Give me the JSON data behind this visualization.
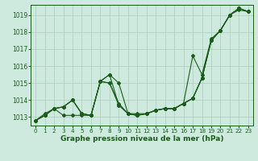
{
  "xlabel": "Graphe pression niveau de la mer (hPa)",
  "bg_color": "#ceeade",
  "grid_color": "#aacbbb",
  "line_color": "#1a5c1a",
  "hours": [
    0,
    1,
    2,
    3,
    4,
    5,
    6,
    7,
    8,
    9,
    10,
    11,
    12,
    13,
    14,
    15,
    16,
    17,
    18,
    19,
    20,
    21,
    22,
    23
  ],
  "series1": [
    1012.8,
    1013.1,
    1013.5,
    1013.1,
    1013.1,
    1013.1,
    1013.1,
    1015.1,
    1015.5,
    1015.0,
    1013.2,
    1013.1,
    1013.2,
    1013.4,
    1013.5,
    1013.5,
    1013.8,
    1014.1,
    1015.3,
    1017.5,
    1018.1,
    1019.0,
    1019.4,
    1019.2
  ],
  "series2": [
    1012.8,
    1013.1,
    1013.5,
    1013.6,
    1014.0,
    1013.2,
    1013.1,
    1015.1,
    1015.0,
    1013.7,
    1013.2,
    1013.1,
    1013.2,
    1013.4,
    1013.5,
    1013.5,
    1013.8,
    1014.1,
    1015.3,
    1017.5,
    1018.1,
    1019.0,
    1019.4,
    1019.2
  ],
  "series3": [
    1012.8,
    1013.1,
    1013.5,
    1013.6,
    1014.0,
    1013.2,
    1013.1,
    1015.1,
    1015.5,
    1013.7,
    1013.2,
    1013.1,
    1013.2,
    1013.4,
    1013.5,
    1013.5,
    1013.8,
    1014.1,
    1015.3,
    1017.5,
    1018.1,
    1019.0,
    1019.4,
    1019.2
  ],
  "series4": [
    1012.8,
    1013.2,
    1013.5,
    1013.6,
    1014.0,
    1013.2,
    1013.1,
    1015.1,
    1015.0,
    1013.8,
    1013.2,
    1013.2,
    1013.2,
    1013.4,
    1013.5,
    1013.5,
    1013.8,
    1016.6,
    1015.5,
    1017.6,
    1018.1,
    1019.0,
    1019.3,
    1019.2
  ],
  "ylim_min": 1012.5,
  "ylim_max": 1019.6,
  "yticks": [
    1013,
    1014,
    1015,
    1016,
    1017,
    1018,
    1019
  ],
  "xticks": [
    0,
    1,
    2,
    3,
    4,
    5,
    6,
    7,
    8,
    9,
    10,
    11,
    12,
    13,
    14,
    15,
    16,
    17,
    18,
    19,
    20,
    21,
    22,
    23
  ]
}
